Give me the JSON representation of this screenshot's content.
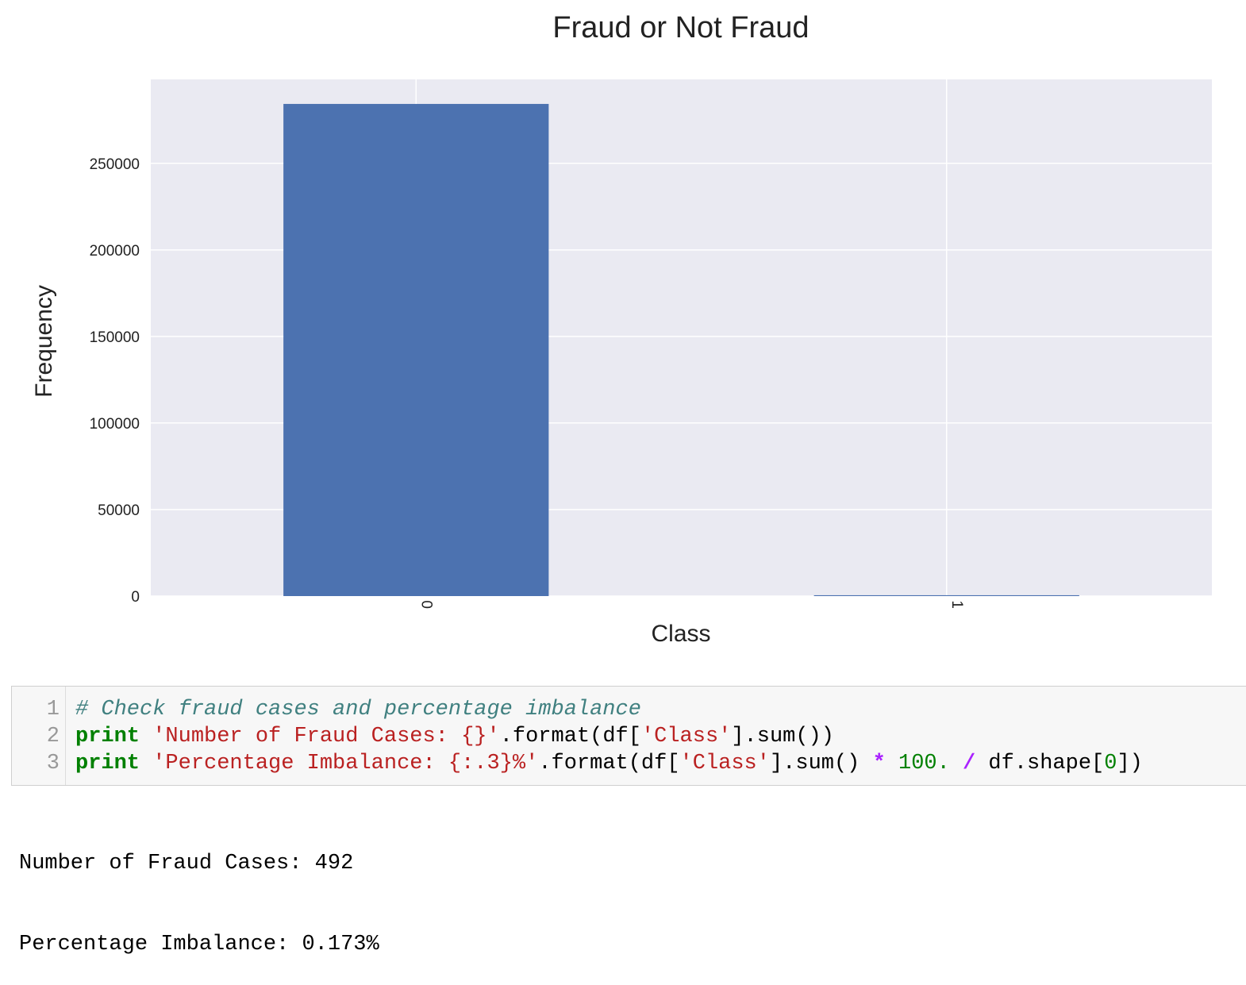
{
  "chart_data": {
    "type": "bar",
    "title": "Fraud or Not Fraud",
    "xlabel": "Class",
    "ylabel": "Frequency",
    "categories": [
      "0",
      "1"
    ],
    "values": [
      284315,
      492
    ],
    "ylim": [
      0,
      298500
    ],
    "yticks": [
      0,
      50000,
      100000,
      150000,
      200000,
      250000
    ],
    "ytick_labels": [
      "0",
      "50000",
      "100000",
      "150000",
      "200000",
      "250000"
    ],
    "grid": true,
    "bar_color": "#4c72b0",
    "background_color": "#eaeaf2"
  },
  "code_cell": {
    "lines": [
      {
        "num": "1",
        "tokens": [
          {
            "text": "# Check fraud cases and percentage imbalance",
            "kind": "comment"
          }
        ]
      },
      {
        "num": "2",
        "tokens": [
          {
            "text": "print",
            "kind": "keyword"
          },
          {
            "text": " ",
            "kind": "plain"
          },
          {
            "text": "'Number of Fraud Cases: {}'",
            "kind": "string"
          },
          {
            "text": ".format(df[",
            "kind": "plain"
          },
          {
            "text": "'Class'",
            "kind": "string"
          },
          {
            "text": "].sum())",
            "kind": "plain"
          }
        ]
      },
      {
        "num": "3",
        "tokens": [
          {
            "text": "print",
            "kind": "keyword"
          },
          {
            "text": " ",
            "kind": "plain"
          },
          {
            "text": "'Percentage Imbalance: {:.3}%'",
            "kind": "string"
          },
          {
            "text": ".format(df[",
            "kind": "plain"
          },
          {
            "text": "'Class'",
            "kind": "string"
          },
          {
            "text": "].sum() ",
            "kind": "plain"
          },
          {
            "text": "*",
            "kind": "operator"
          },
          {
            "text": " ",
            "kind": "plain"
          },
          {
            "text": "100.",
            "kind": "number"
          },
          {
            "text": " ",
            "kind": "plain"
          },
          {
            "text": "/",
            "kind": "operator"
          },
          {
            "text": " df.shape[",
            "kind": "plain"
          },
          {
            "text": "0",
            "kind": "number"
          },
          {
            "text": "])",
            "kind": "plain"
          }
        ]
      }
    ]
  },
  "output": {
    "line1": "Number of Fraud Cases: 492",
    "line2": "Percentage Imbalance: 0.173%"
  }
}
